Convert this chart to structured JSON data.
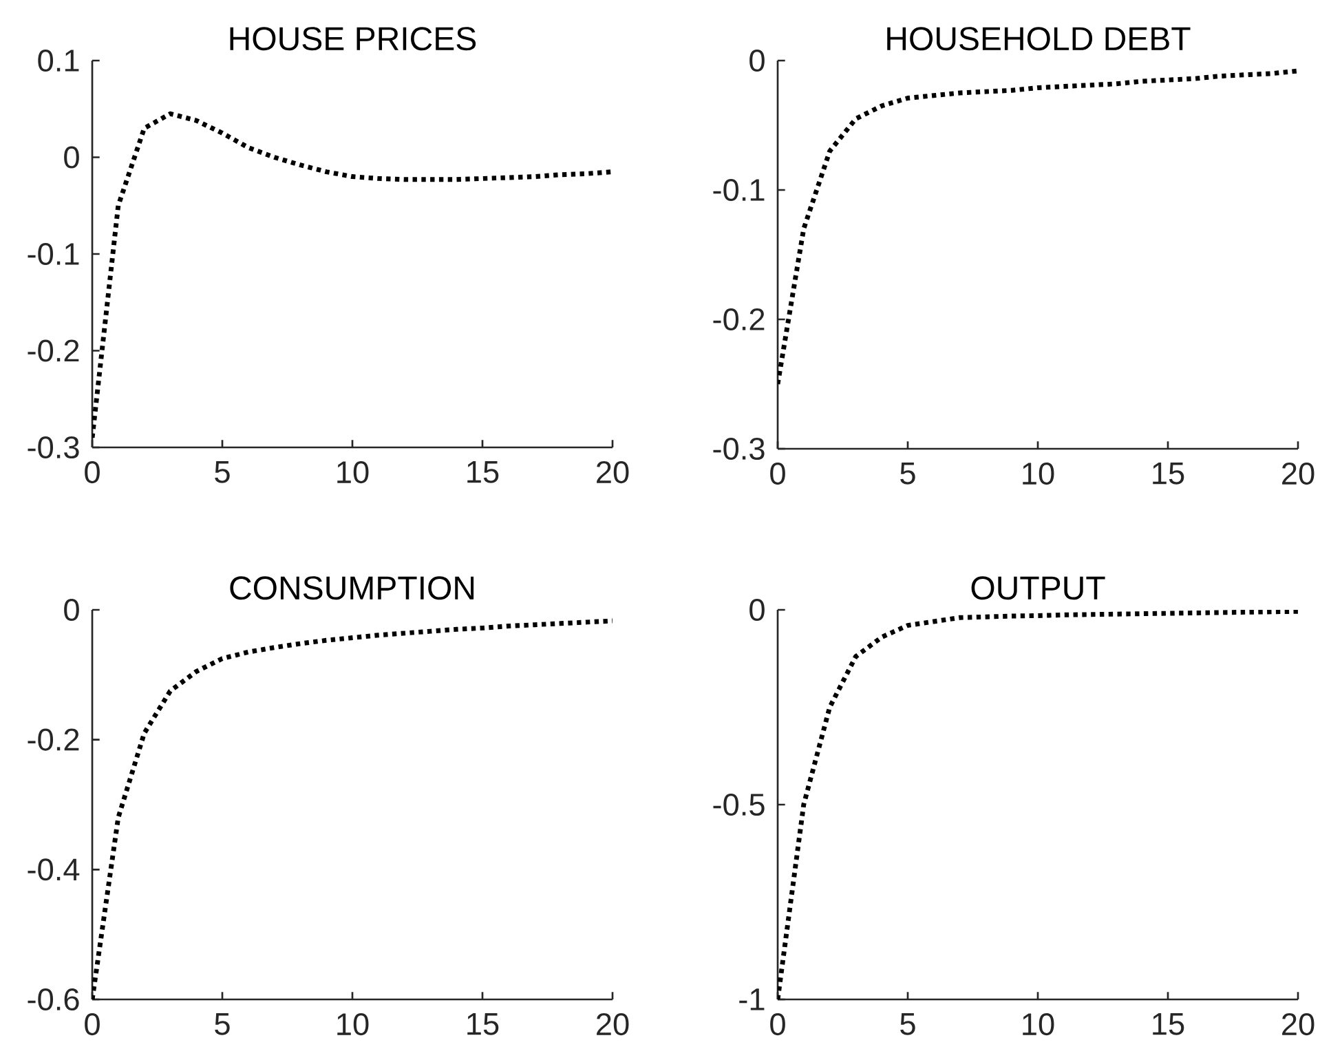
{
  "chart_data": [
    {
      "type": "line",
      "title": "HOUSE PRICES",
      "x": [
        0,
        1,
        2,
        3,
        4,
        5,
        6,
        7,
        8,
        9,
        10,
        11,
        12,
        13,
        14,
        15,
        16,
        17,
        18,
        19,
        20
      ],
      "color": "#000000",
      "line_style": "dotted",
      "values": [
        -0.29,
        -0.05,
        0.03,
        0.045,
        0.038,
        0.025,
        0.01,
        0.0,
        -0.008,
        -0.015,
        -0.02,
        -0.022,
        -0.023,
        -0.023,
        -0.023,
        -0.022,
        -0.021,
        -0.02,
        -0.018,
        -0.017,
        -0.015
      ],
      "xlim": [
        0,
        20
      ],
      "ylim": [
        -0.3,
        0.1
      ],
      "xticks": [
        0,
        5,
        10,
        15,
        20
      ],
      "yticks": [
        -0.3,
        -0.2,
        -0.1,
        0,
        0.1
      ]
    },
    {
      "type": "line",
      "title": "HOUSEHOLD DEBT",
      "x": [
        0,
        1,
        2,
        3,
        4,
        5,
        6,
        7,
        8,
        9,
        10,
        11,
        12,
        13,
        14,
        15,
        16,
        17,
        18,
        19,
        20
      ],
      "color": "#000000",
      "line_style": "dotted",
      "values": [
        -0.25,
        -0.13,
        -0.07,
        -0.045,
        -0.035,
        -0.029,
        -0.027,
        -0.025,
        -0.024,
        -0.023,
        -0.021,
        -0.02,
        -0.019,
        -0.018,
        -0.016,
        -0.015,
        -0.014,
        -0.012,
        -0.011,
        -0.01,
        -0.008
      ],
      "xlim": [
        0,
        20
      ],
      "ylim": [
        -0.3,
        0
      ],
      "xticks": [
        0,
        5,
        10,
        15,
        20
      ],
      "yticks": [
        -0.3,
        -0.2,
        -0.1,
        0
      ]
    },
    {
      "type": "line",
      "title": "CONSUMPTION",
      "x": [
        0,
        1,
        2,
        3,
        4,
        5,
        6,
        7,
        8,
        9,
        10,
        11,
        12,
        13,
        14,
        15,
        16,
        17,
        18,
        19,
        20
      ],
      "color": "#000000",
      "line_style": "dotted",
      "values": [
        -0.6,
        -0.32,
        -0.19,
        -0.125,
        -0.095,
        -0.075,
        -0.065,
        -0.058,
        -0.052,
        -0.047,
        -0.043,
        -0.039,
        -0.036,
        -0.033,
        -0.03,
        -0.028,
        -0.025,
        -0.023,
        -0.021,
        -0.019,
        -0.017
      ],
      "xlim": [
        0,
        20
      ],
      "ylim": [
        -0.6,
        0
      ],
      "xticks": [
        0,
        5,
        10,
        15,
        20
      ],
      "yticks": [
        -0.6,
        -0.4,
        -0.2,
        0
      ]
    },
    {
      "type": "line",
      "title": "OUTPUT",
      "x": [
        0,
        1,
        2,
        3,
        4,
        5,
        6,
        7,
        8,
        9,
        10,
        11,
        12,
        13,
        14,
        15,
        16,
        17,
        18,
        19,
        20
      ],
      "color": "#000000",
      "line_style": "dotted",
      "values": [
        -1,
        -0.5,
        -0.25,
        -0.12,
        -0.07,
        -0.04,
        -0.03,
        -0.02,
        -0.018,
        -0.016,
        -0.015,
        -0.013,
        -0.012,
        -0.011,
        -0.01,
        -0.009,
        -0.008,
        -0.007,
        -0.006,
        -0.005,
        -0.004
      ],
      "xlim": [
        0,
        20
      ],
      "ylim": [
        -1,
        0
      ],
      "xticks": [
        0,
        5,
        10,
        15,
        20
      ],
      "yticks": [
        -1,
        -0.5,
        0
      ]
    }
  ]
}
